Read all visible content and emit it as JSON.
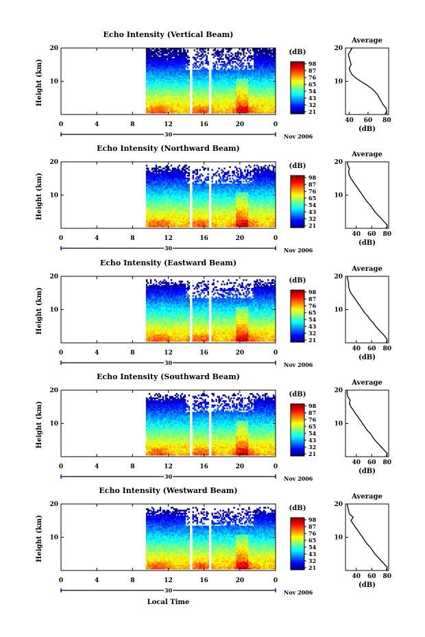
{
  "figure": {
    "x_axis_label": "Local Time",
    "date_label": "30",
    "month_label": "Nov 2006",
    "y_axis_label": "Height (km)",
    "colorbar_unit": "(dB)",
    "colorbar_ticks": [
      "98",
      "87",
      "76",
      "65",
      "54",
      "43",
      "32",
      "21"
    ],
    "average_title": "Average",
    "average_xlabel": "(dB)"
  },
  "chart_data": [
    {
      "type": "heatmap",
      "title": "Echo Intensity (Vertical Beam)",
      "ylabel": "Height (km)",
      "xlabel": "",
      "xticks": [
        "0",
        "4",
        "8",
        "12",
        "16",
        "20",
        "0"
      ],
      "yticks": [
        "10",
        "20"
      ],
      "xlim": [
        0,
        24
      ],
      "ylim": [
        0,
        20
      ],
      "zlim": [
        21,
        98
      ],
      "data_start_hour": 9.5,
      "gaps_hours": [
        14.5,
        16.7
      ],
      "colorbar": {
        "unit": "(dB)",
        "ticks": [
          "98",
          "87",
          "76",
          "65",
          "54",
          "43",
          "32",
          "21"
        ]
      },
      "average_profile": {
        "title": "Average",
        "xlabel": "(dB)",
        "xticks": [
          "40",
          "60",
          "80"
        ],
        "yticks": [
          "10",
          "20"
        ],
        "xlim": [
          36,
          82
        ],
        "x": [
          78,
          80,
          79,
          76,
          74,
          72,
          70,
          67,
          63,
          58,
          52,
          47,
          43,
          41,
          40,
          42,
          41,
          40,
          39,
          41,
          43
        ],
        "y": [
          0,
          1,
          2,
          3,
          4,
          5,
          6,
          7,
          8,
          9,
          10,
          11,
          12,
          13,
          14,
          15,
          16,
          17,
          18,
          19,
          20
        ]
      }
    },
    {
      "type": "heatmap",
      "title": "Echo Intensity (Northward Beam)",
      "ylabel": "Height (km)",
      "xlabel": "",
      "xticks": [
        "0",
        "4",
        "8",
        "12",
        "16",
        "20",
        "0"
      ],
      "yticks": [
        "10",
        "20"
      ],
      "xlim": [
        0,
        24
      ],
      "ylim": [
        0,
        20
      ],
      "zlim": [
        21,
        98
      ],
      "data_start_hour": 9.5,
      "gaps_hours": [
        14.5,
        16.7
      ],
      "colorbar": {
        "unit": "(dB)",
        "ticks": [
          "98",
          "87",
          "76",
          "65",
          "54",
          "43",
          "32",
          "21"
        ]
      },
      "average_profile": {
        "title": "Average",
        "xlabel": "(dB)",
        "xticks": [
          "40",
          "60",
          "80"
        ],
        "yticks": [
          "10",
          "20"
        ],
        "xlim": [
          26,
          82
        ],
        "x": [
          79,
          80,
          76,
          72,
          68,
          64,
          61,
          58,
          54,
          51,
          48,
          45,
          42,
          39,
          36,
          33,
          31,
          30,
          31,
          29,
          28
        ],
        "y": [
          0,
          1,
          2,
          3,
          4,
          5,
          6,
          7,
          8,
          9,
          10,
          11,
          12,
          13,
          14,
          15,
          16,
          17,
          18,
          19,
          20
        ]
      }
    },
    {
      "type": "heatmap",
      "title": "Echo Intensity (Eastward Beam)",
      "ylabel": "Height (km)",
      "xlabel": "",
      "xticks": [
        "0",
        "4",
        "8",
        "12",
        "16",
        "20",
        "0"
      ],
      "yticks": [
        "10",
        "20"
      ],
      "xlim": [
        0,
        24
      ],
      "ylim": [
        0,
        20
      ],
      "zlim": [
        21,
        98
      ],
      "data_start_hour": 9.5,
      "gaps_hours": [
        14.5,
        16.7
      ],
      "colorbar": {
        "unit": "(dB)",
        "ticks": [
          "98",
          "87",
          "76",
          "65",
          "54",
          "43",
          "32",
          "21"
        ]
      },
      "average_profile": {
        "title": "Average",
        "xlabel": "(dB)",
        "xticks": [
          "40",
          "60",
          "80"
        ],
        "yticks": [
          "10",
          "20"
        ],
        "xlim": [
          26,
          82
        ],
        "x": [
          79,
          80,
          77,
          73,
          69,
          65,
          62,
          58,
          55,
          51,
          48,
          45,
          42,
          39,
          36,
          33,
          31,
          30,
          30,
          29,
          28
        ],
        "y": [
          0,
          1,
          2,
          3,
          4,
          5,
          6,
          7,
          8,
          9,
          10,
          11,
          12,
          13,
          14,
          15,
          16,
          17,
          18,
          19,
          20
        ]
      }
    },
    {
      "type": "heatmap",
      "title": "Echo Intensity (Southward Beam)",
      "ylabel": "Height (km)",
      "xlabel": "",
      "xticks": [
        "0",
        "4",
        "8",
        "12",
        "16",
        "20",
        "0"
      ],
      "yticks": [
        "10",
        "20"
      ],
      "xlim": [
        0,
        24
      ],
      "ylim": [
        0,
        20
      ],
      "zlim": [
        21,
        98
      ],
      "data_start_hour": 9.5,
      "gaps_hours": [
        14.5,
        16.7
      ],
      "colorbar": {
        "unit": "(dB)",
        "ticks": [
          "98",
          "87",
          "76",
          "65",
          "54",
          "43",
          "32",
          "21"
        ]
      },
      "average_profile": {
        "title": "Average",
        "xlabel": "(dB)",
        "xticks": [
          "40",
          "60",
          "80"
        ],
        "yticks": [
          "10",
          "20"
        ],
        "xlim": [
          26,
          82
        ],
        "x": [
          79,
          80,
          76,
          72,
          68,
          64,
          61,
          58,
          54,
          51,
          48,
          45,
          42,
          39,
          36,
          33,
          31,
          32,
          29,
          28,
          28
        ],
        "y": [
          0,
          1,
          2,
          3,
          4,
          5,
          6,
          7,
          8,
          9,
          10,
          11,
          12,
          13,
          14,
          15,
          16,
          17,
          18,
          19,
          20
        ]
      }
    },
    {
      "type": "heatmap",
      "title": "Echo Intensity (Westward Beam)",
      "ylabel": "Height (km)",
      "xlabel": "Local Time",
      "xticks": [
        "0",
        "4",
        "8",
        "12",
        "16",
        "20",
        "0"
      ],
      "yticks": [
        "10",
        "20"
      ],
      "xlim": [
        0,
        24
      ],
      "ylim": [
        0,
        20
      ],
      "zlim": [
        21,
        98
      ],
      "data_start_hour": 9.5,
      "gaps_hours": [
        14.5,
        16.7
      ],
      "colorbar": {
        "unit": "(dB)",
        "ticks": [
          "98",
          "87",
          "76",
          "65",
          "54",
          "43",
          "32",
          "21"
        ]
      },
      "average_profile": {
        "title": "Average",
        "xlabel": "(dB)",
        "xticks": [
          "40",
          "60",
          "80"
        ],
        "yticks": [
          "10",
          "20"
        ],
        "xlim": [
          26,
          82
        ],
        "x": [
          79,
          80,
          76,
          72,
          68,
          64,
          61,
          58,
          54,
          51,
          48,
          45,
          42,
          39,
          36,
          33,
          36,
          31,
          30,
          29,
          28
        ],
        "y": [
          0,
          1,
          2,
          3,
          4,
          5,
          6,
          7,
          8,
          9,
          10,
          11,
          12,
          13,
          14,
          15,
          16,
          17,
          18,
          19,
          20
        ]
      }
    }
  ]
}
